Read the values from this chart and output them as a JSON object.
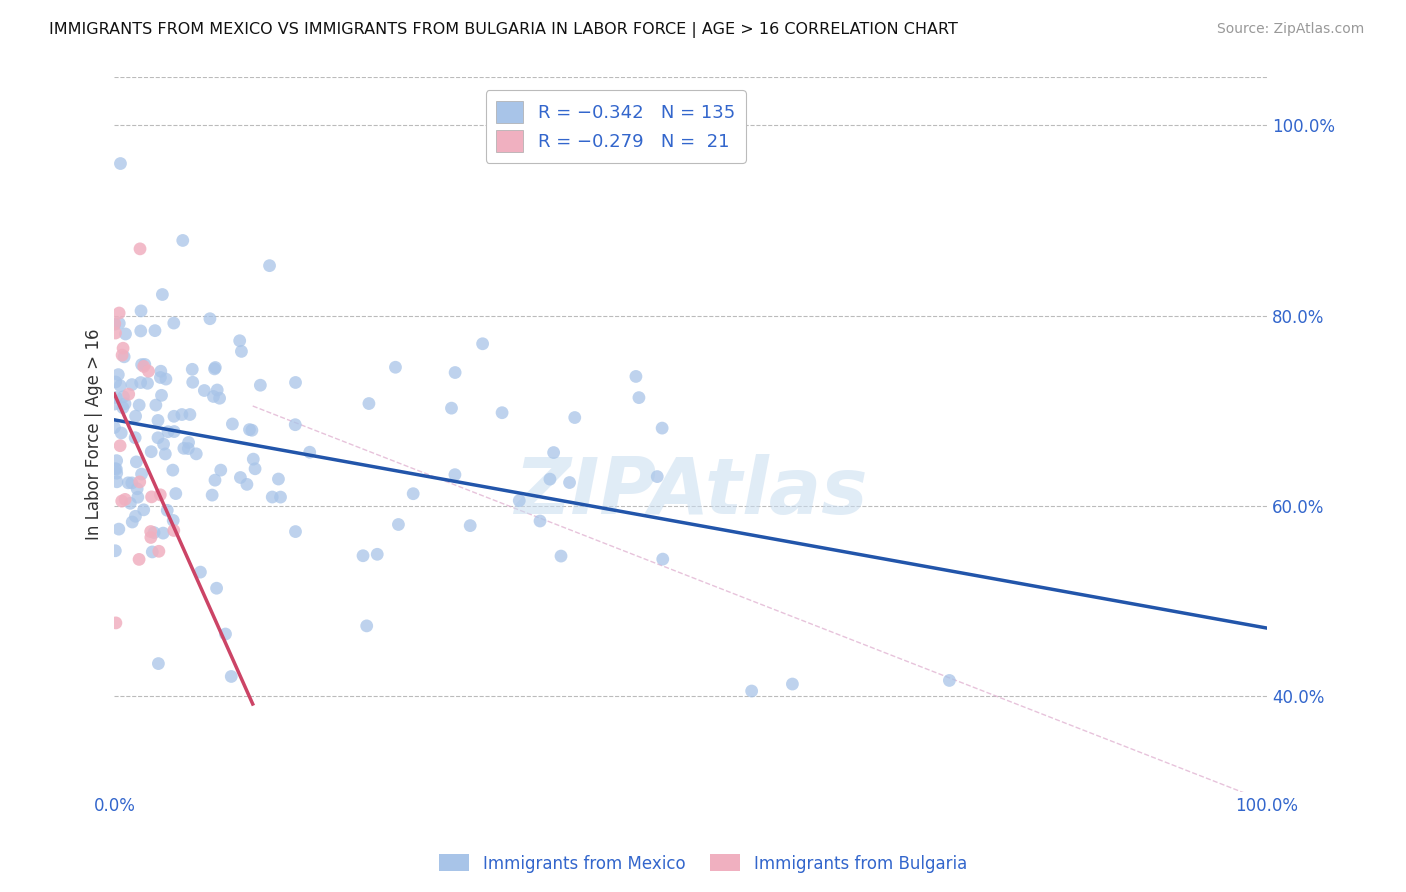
{
  "title": "IMMIGRANTS FROM MEXICO VS IMMIGRANTS FROM BULGARIA IN LABOR FORCE | AGE > 16 CORRELATION CHART",
  "source": "Source: ZipAtlas.com",
  "ylabel": "In Labor Force | Age > 16",
  "xlim": [
    0.0,
    1.0
  ],
  "ylim": [
    0.3,
    1.05
  ],
  "right_yticks": [
    0.4,
    0.6,
    0.8,
    1.0
  ],
  "right_yticklabels": [
    "40.0%",
    "60.0%",
    "80.0%",
    "100.0%"
  ],
  "mexico_color": "#a8c4e8",
  "mexico_line_color": "#2255aa",
  "bulgaria_color": "#f0b0c0",
  "bulgaria_line_color": "#cc4466",
  "background_color": "#ffffff",
  "grid_color": "#bbbbbb",
  "R_mexico": -0.342,
  "N_mexico": 135,
  "R_bulgaria": -0.279,
  "N_bulgaria": 21,
  "mexico_seed": 7,
  "bulgaria_seed": 13
}
